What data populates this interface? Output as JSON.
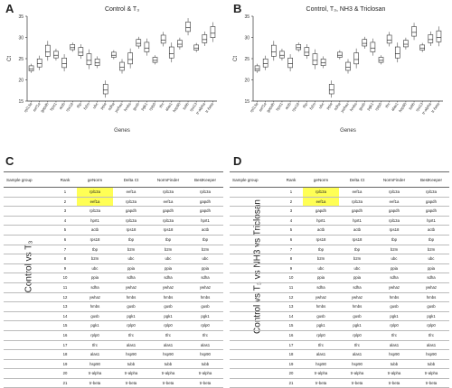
{
  "panels": {
    "A": {
      "letter": "A",
      "title": "Control & T₃"
    },
    "B": {
      "letter": "B",
      "title": "Control, T₃, NH3 & Triclosan"
    },
    "C": {
      "letter": "C"
    },
    "D": {
      "letter": "D"
    }
  },
  "chart_data": [
    {
      "type": "box",
      "title": "Control & T₃",
      "xlabel": "Genes",
      "ylabel": "Ct",
      "ylim": [
        15,
        35
      ],
      "yticks": [
        15,
        20,
        25,
        30,
        35
      ],
      "categories": [
        "rpl13a",
        "eef1a",
        "gapdh",
        "hprt1",
        "actb",
        "rps18",
        "tbp",
        "b2m",
        "ubc",
        "ppia",
        "sdha",
        "ywhaz",
        "hmbs",
        "gusb",
        "pgk1",
        "rplp0",
        "tfrc",
        "alas1",
        "hsp90",
        "tubb",
        "rps13",
        "tr-alpha",
        "tr-beta"
      ],
      "medians": [
        22.6,
        23.8,
        26.6,
        25.8,
        23.8,
        27.6,
        26.5,
        24.6,
        24.0,
        17.6,
        25.8,
        23.0,
        24.8,
        28.6,
        27.5,
        24.6,
        29.4,
        26.2,
        28.4,
        32.3,
        27.5,
        29.5,
        31.0
      ]
    },
    {
      "type": "box",
      "title": "Control, T₃, NH3 & Triclosan",
      "xlabel": "Genes",
      "ylabel": "Ct",
      "ylim": [
        15,
        35
      ],
      "yticks": [
        15,
        20,
        25,
        30,
        35
      ],
      "categories": [
        "rpl13a",
        "eef1a",
        "gapdh",
        "hprt1",
        "actb",
        "rps18",
        "tbp",
        "b2m",
        "ubc",
        "ppia",
        "sdha",
        "ywhaz",
        "hmbs",
        "gusb",
        "pgk1",
        "rplp0",
        "tfrc",
        "alas1",
        "hsp90",
        "tubb",
        "rps13",
        "tr-alpha",
        "tr-beta"
      ],
      "medians": [
        22.6,
        23.8,
        26.6,
        25.8,
        23.8,
        27.6,
        26.5,
        24.6,
        24.0,
        17.6,
        25.8,
        23.0,
        24.8,
        28.6,
        27.5,
        24.6,
        29.4,
        26.2,
        28.4,
        31.2,
        27.5,
        29.5,
        30.0
      ]
    }
  ],
  "tableC": {
    "group_label": "Control vs T₃",
    "headers": [
      "Sample group",
      "Rank",
      "geNorm",
      "Delta Ct",
      "NormFinder",
      "BestKeeper"
    ],
    "rows": [
      [
        "1",
        "rpl13a",
        "eef1a",
        "rpl13a",
        "rpl13a"
      ],
      [
        "2",
        "eef1a",
        "rpl13a",
        "eef1a",
        "gapdh"
      ],
      [
        "3",
        "rpl13a",
        "gapdh",
        "gapdh",
        "gapdh"
      ],
      [
        "4",
        "hprt1",
        "rpl13a",
        "rpl13a",
        "hprt1"
      ],
      [
        "5",
        "actb",
        "rps18",
        "rps18",
        "actb"
      ],
      [
        "6",
        "rps18",
        "tbp",
        "tbp",
        "tbp"
      ],
      [
        "7",
        "tbp",
        "b2m",
        "b2m",
        "b2m"
      ],
      [
        "8",
        "b2m",
        "ubc",
        "ubc",
        "ubc"
      ],
      [
        "9",
        "ubc",
        "ppia",
        "ppia",
        "ppia"
      ],
      [
        "10",
        "ppia",
        "sdha",
        "sdha",
        "sdha"
      ],
      [
        "11",
        "sdha",
        "ywhaz",
        "ywhaz",
        "ywhaz"
      ],
      [
        "12",
        "ywhaz",
        "hmbs",
        "hmbs",
        "hmbs"
      ],
      [
        "13",
        "hmbs",
        "gusb",
        "gusb",
        "gusb"
      ],
      [
        "14",
        "gusb",
        "pgk1",
        "pgk1",
        "pgk1"
      ],
      [
        "15",
        "pgk1",
        "rplp0",
        "rplp0",
        "rplp0"
      ],
      [
        "16",
        "rplp0",
        "tfrc",
        "tfrc",
        "tfrc"
      ],
      [
        "17",
        "tfrc",
        "alas1",
        "alas1",
        "alas1"
      ],
      [
        "18",
        "alas1",
        "hsp90",
        "hsp90",
        "hsp90"
      ],
      [
        "19",
        "hsp90",
        "tubb",
        "tubb",
        "tubb"
      ],
      [
        "20",
        "tr-alpha",
        "tr-alpha",
        "tr-alpha",
        "tr-alpha"
      ],
      [
        "21",
        "tr-beta",
        "tr-beta",
        "tr-beta",
        "tr-beta"
      ]
    ]
  },
  "tableD": {
    "group_label": "Control vs T₃ vs NH3 vs Triclosan",
    "headers": [
      "Sample group",
      "Rank",
      "geNorm",
      "Delta Ct",
      "NormFinder",
      "BestKeeper"
    ],
    "rows": [
      [
        "1",
        "rpl13a",
        "eef1a",
        "rpl13a",
        "rpl13a"
      ],
      [
        "2",
        "eef1a",
        "rpl13a",
        "eef1a",
        "gapdh"
      ],
      [
        "3",
        "gapdh",
        "gapdh",
        "gapdh",
        "gapdh"
      ],
      [
        "4",
        "hprt1",
        "hprt1",
        "rpl13a",
        "hprt1"
      ],
      [
        "5",
        "actb",
        "actb",
        "rps18",
        "actb"
      ],
      [
        "6",
        "rps18",
        "rps18",
        "tbp",
        "tbp"
      ],
      [
        "7",
        "tbp",
        "tbp",
        "b2m",
        "b2m"
      ],
      [
        "8",
        "b2m",
        "b2m",
        "ubc",
        "ubc"
      ],
      [
        "9",
        "ubc",
        "ubc",
        "ppia",
        "ppia"
      ],
      [
        "10",
        "ppia",
        "ppia",
        "sdha",
        "sdha"
      ],
      [
        "11",
        "sdha",
        "sdha",
        "ywhaz",
        "ywhaz"
      ],
      [
        "12",
        "ywhaz",
        "ywhaz",
        "hmbs",
        "hmbs"
      ],
      [
        "13",
        "hmbs",
        "hmbs",
        "gusb",
        "gusb"
      ],
      [
        "14",
        "gusb",
        "gusb",
        "pgk1",
        "pgk1"
      ],
      [
        "15",
        "pgk1",
        "pgk1",
        "rplp0",
        "rplp0"
      ],
      [
        "16",
        "rplp0",
        "rplp0",
        "tfrc",
        "tfrc"
      ],
      [
        "17",
        "tfrc",
        "tfrc",
        "alas1",
        "alas1"
      ],
      [
        "18",
        "alas1",
        "alas1",
        "hsp90",
        "hsp90"
      ],
      [
        "19",
        "hsp90",
        "hsp90",
        "tubb",
        "tubb"
      ],
      [
        "20",
        "tr-alpha",
        "tr-alpha",
        "tr-alpha",
        "tr-alpha"
      ],
      [
        "21",
        "tr-beta",
        "tr-beta",
        "tr-beta",
        "tr-beta"
      ]
    ]
  }
}
